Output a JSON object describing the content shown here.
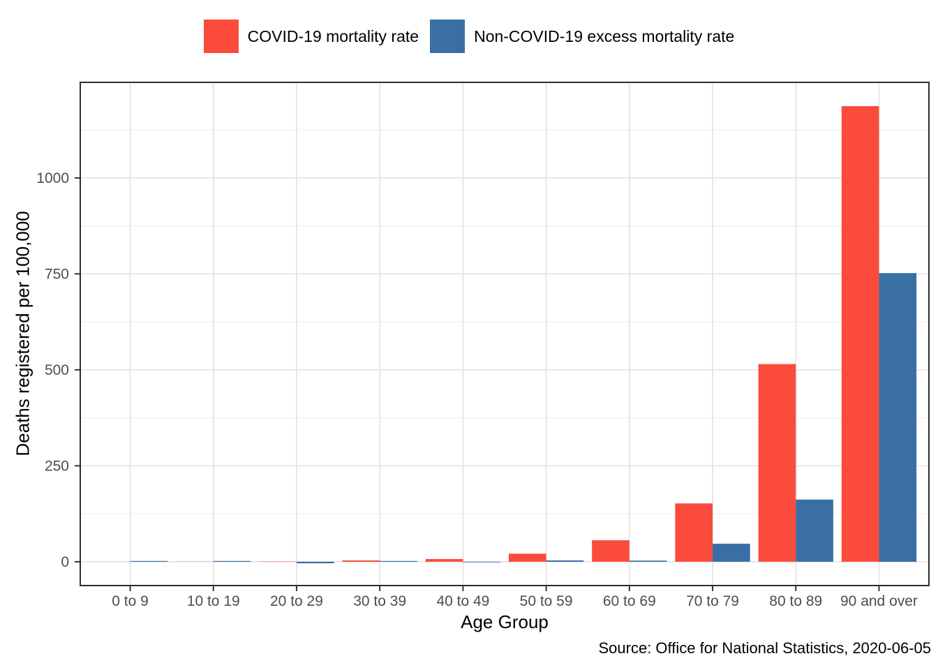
{
  "chart_data": {
    "type": "bar",
    "bar_layout": "dodged",
    "title": "",
    "categories": [
      "0 to 9",
      "10 to 19",
      "20 to 29",
      "30 to 39",
      "40 to 49",
      "50 to 59",
      "60 to 69",
      "70 to 79",
      "80 to 89",
      "90 and over"
    ],
    "series": [
      {
        "name": "COVID-19 mortality rate",
        "color": "#FB4B3B",
        "values": [
          0.1,
          0.3,
          0.7,
          3.5,
          7,
          21,
          56,
          152,
          515,
          1187
        ]
      },
      {
        "name": "Non-COVID-19 excess mortality rate",
        "color": "#3A6FA5",
        "values": [
          2,
          2,
          -4,
          2,
          -1.5,
          3.5,
          3,
          47,
          162,
          752
        ]
      }
    ],
    "xlabel": "Age Group",
    "ylabel": "Deaths registered per 100,000",
    "yticks": [
      0,
      250,
      500,
      750,
      1000
    ],
    "yminor": [
      125,
      375,
      625,
      875,
      1125
    ],
    "ylim": [
      -62,
      1249
    ],
    "grid": true,
    "legend_position": "top",
    "caption": "Source: Office for National Statistics, 2020-06-05"
  },
  "colors": {
    "background": "#FFFFFF",
    "panel_border": "#2E2E2E",
    "grid_major": "#E7E7E7",
    "grid_minor": "#F2F2F2",
    "tick_label": "#4D4D4D",
    "tick_mark": "#333333",
    "title_text": "#000000"
  }
}
